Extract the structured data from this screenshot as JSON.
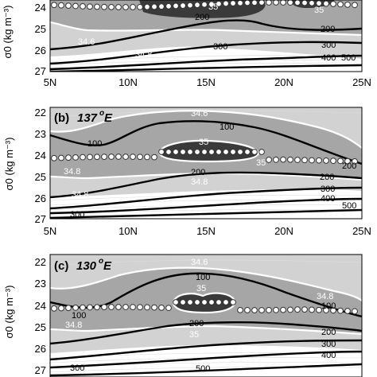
{
  "figure": {
    "panels": [
      {
        "id": "a",
        "label": "",
        "longitude": "",
        "lon_sup": "",
        "ylabel": "σ0 (kg m⁻³)",
        "yticks": [
          "24",
          "25",
          "26",
          "27"
        ],
        "xticks": [
          "5N",
          "10N",
          "15N",
          "20N",
          "25N"
        ],
        "salinity_labels": [
          "34.6",
          "34.8",
          "35",
          "35"
        ],
        "depth_labels": [
          "200",
          "300",
          "200",
          "300",
          "400",
          "500"
        ]
      },
      {
        "id": "b",
        "label": "(b)",
        "longitude": "137",
        "lon_sup": "o",
        "lon_suffix": "E",
        "ylabel": "σ0 (kg m⁻³)",
        "yticks": [
          "22",
          "23",
          "24",
          "25",
          "26",
          "27"
        ],
        "xticks": [
          "5N",
          "10N",
          "15N",
          "20N",
          "25N"
        ],
        "salinity_labels": [
          "34.6",
          "35",
          "35",
          "34.8",
          "34.8",
          "34.8"
        ],
        "depth_labels": [
          "100",
          "100",
          "200",
          "200",
          "200",
          "300",
          "400",
          "500",
          "300"
        ]
      },
      {
        "id": "c",
        "label": "(c)",
        "longitude": "130",
        "lon_sup": "o",
        "lon_suffix": "E",
        "ylabel": "σ0 (kg m⁻³)",
        "yticks": [
          "22",
          "23",
          "24",
          "25",
          "26",
          "27"
        ],
        "xticks": [],
        "salinity_labels": [
          "34.6",
          "35",
          "34.8",
          "34.8",
          "35"
        ],
        "depth_labels": [
          "100",
          "100",
          "100",
          "200",
          "200",
          "300",
          "400",
          "500",
          "300"
        ]
      }
    ]
  },
  "colors": {
    "band_light": "#d2d2d2",
    "band_mid": "#a6a6a6",
    "band_dark": "#7f7f7f",
    "core_dark": "#3a3a3a",
    "white_contour": "#ffffff",
    "depth_contour": "#000000",
    "marker_fill": "#ffffff",
    "marker_stroke": "#333333"
  }
}
